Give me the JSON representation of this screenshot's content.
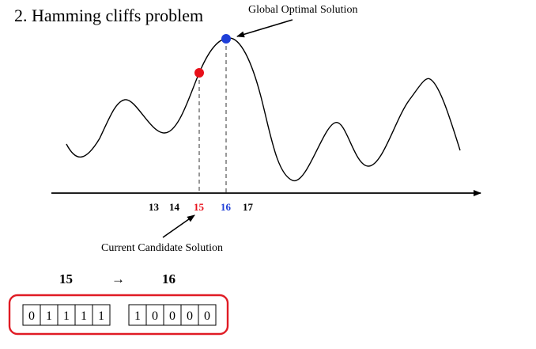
{
  "title": "2. Hamming cliffs problem",
  "annotations": {
    "global_optimum": "Global Optimal Solution",
    "current_candidate": "Current Candidate Solution"
  },
  "axis_ticks": [
    {
      "label": "13",
      "color": "#000000"
    },
    {
      "label": "14",
      "color": "#000000"
    },
    {
      "label": "15",
      "color": "#e8101a"
    },
    {
      "label": "16",
      "color": "#1f3fd8"
    },
    {
      "label": "17",
      "color": "#000000"
    }
  ],
  "transition": {
    "from": "15",
    "arrow": "→",
    "to": "16"
  },
  "binary": {
    "from_bits": [
      "0",
      "1",
      "1",
      "1",
      "1"
    ],
    "to_bits": [
      "1",
      "0",
      "0",
      "0",
      "0"
    ]
  },
  "colors": {
    "current_point": "#e8101a",
    "optimum_point": "#1f3fd8",
    "box_border": "#e01b24"
  }
}
